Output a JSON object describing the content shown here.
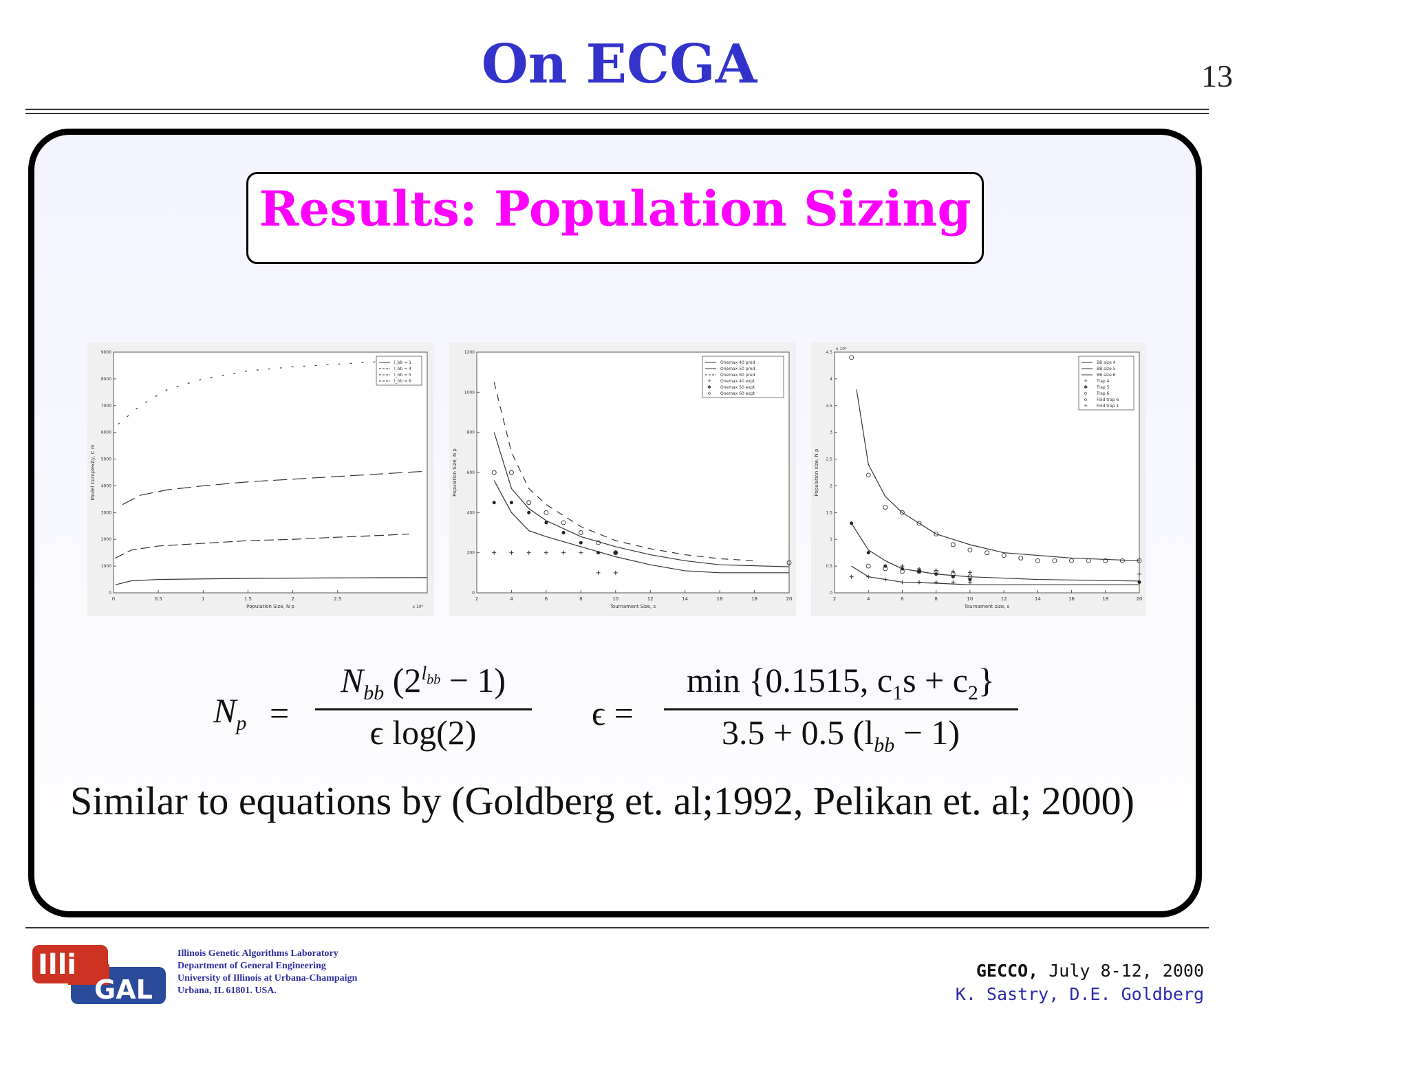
{
  "header": {
    "title": "On ECGA",
    "page_number": "13"
  },
  "results_title": "Results: Population Sizing",
  "equations": {
    "lhs1": "N",
    "lhs1_sub": "p",
    "num1": "N",
    "num1_sub": "bb",
    "num1_rest_open": "(2",
    "num1_exp": "l",
    "num1_exp_sub": "bb",
    "num1_rest_close": " − 1)",
    "den1": "ϵ log(2)",
    "lhs2": "ϵ =",
    "num2_a": "min {0.1515, c",
    "num2_sub1": "1",
    "num2_b": "s + c",
    "num2_sub2": "2",
    "num2_c": "}",
    "den2_a": "3.5 + 0.5 (l",
    "den2_sub": "bb",
    "den2_b": " − 1)"
  },
  "body_text": "Similar to equations by (Goldberg et. al;1992, Pelikan et. al; 2000)",
  "footer": {
    "logo_text_1": "Illi",
    "logo_text_2": "GAL",
    "lab_lines": [
      "Illinois Genetic Algorithms Laboratory",
      "Department of General Engineering",
      "University of Illinois at Urbana-Champaign",
      "Urbana, IL 61801. USA."
    ],
    "gecco_bold": "GECCO,",
    "gecco_date": " July 8-12, 2000",
    "authors": "K. Sastry, D.E. Goldberg"
  },
  "colors": {
    "title": "#3333cc",
    "results_title": "#ff00ff",
    "authors": "#2a2aa8"
  },
  "chart_data": [
    {
      "type": "line",
      "xlabel": "Population Size, N",
      "xlabel_sub": "p",
      "ylabel": "Model Complexity, C",
      "ylabel_sub": "m",
      "x_multiplier": "x 10⁴",
      "xlim": [
        0,
        3.5
      ],
      "ylim": [
        0,
        9000
      ],
      "xticks": [
        "0",
        "0.5",
        "1",
        "1.5",
        "2",
        "2.5"
      ],
      "yticks": [
        "0",
        "1000",
        "2000",
        "3000",
        "4000",
        "5000",
        "6000",
        "7000",
        "8000",
        "9000"
      ],
      "legend": [
        "l_bb = 1",
        "l_bb = 4",
        "l_bb = 5",
        "l_bb = 6"
      ],
      "legend_placement": "top-right",
      "series": [
        {
          "name": "l_bb = 1",
          "dash": "",
          "x": [
            0.02,
            0.2,
            0.5,
            1,
            1.5,
            2,
            2.5,
            3,
            3.5
          ],
          "y": [
            300,
            450,
            500,
            520,
            540,
            550,
            560,
            565,
            570
          ]
        },
        {
          "name": "l_bb = 4",
          "dash": "14,6",
          "x": [
            0.02,
            0.2,
            0.5,
            1,
            1.5,
            2,
            2.5,
            3,
            3.3
          ],
          "y": [
            1300,
            1600,
            1750,
            1850,
            1950,
            2000,
            2080,
            2150,
            2200
          ]
        },
        {
          "name": "l_bb = 5",
          "dash": "20,8",
          "x": [
            0.1,
            0.3,
            0.6,
            1,
            1.5,
            2,
            2.5,
            3,
            3.5
          ],
          "y": [
            3300,
            3650,
            3850,
            4000,
            4150,
            4250,
            4350,
            4450,
            4550
          ]
        },
        {
          "name": "l_bb = 6",
          "dash": "3,14",
          "x": [
            0.05,
            0.3,
            0.6,
            1,
            1.5,
            2,
            2.5,
            3,
            3.5
          ],
          "y": [
            6300,
            7000,
            7600,
            8000,
            8300,
            8450,
            8550,
            8650,
            8700
          ]
        }
      ]
    },
    {
      "type": "line",
      "xlabel": "Tournament Size, s",
      "ylabel": "Population Size, N",
      "ylabel_sub": "p",
      "xlim": [
        2,
        20
      ],
      "ylim": [
        0,
        1200
      ],
      "xticks": [
        "2",
        "4",
        "6",
        "8",
        "10",
        "12",
        "14",
        "16",
        "18",
        "20"
      ],
      "yticks": [
        "0",
        "200",
        "400",
        "600",
        "800",
        "1000",
        "1200"
      ],
      "legend": [
        "Onemax 40 pred",
        "Onemax 50 pred",
        "Onemax 60 pred",
        "Onemax 40 expt",
        "Onemax 50 expt",
        "Onemax 60 expt"
      ],
      "legend_placement": "top-right",
      "series": [
        {
          "name": "Onemax 40 pred",
          "dash": "",
          "x": [
            3,
            4,
            5,
            6,
            8,
            10,
            12,
            14,
            16,
            20
          ],
          "y": [
            560,
            400,
            310,
            280,
            230,
            180,
            140,
            110,
            100,
            100
          ]
        },
        {
          "name": "Onemax 50 pred",
          "dash": "",
          "x": [
            3,
            4,
            5,
            6,
            8,
            10,
            12,
            14,
            16,
            20
          ],
          "y": [
            800,
            520,
            420,
            360,
            280,
            230,
            190,
            160,
            140,
            130
          ]
        },
        {
          "name": "Onemax 60 pred",
          "dash": "10,8",
          "x": [
            3,
            4,
            5,
            6,
            8,
            10,
            12,
            14,
            16,
            18
          ],
          "y": [
            1050,
            700,
            520,
            440,
            330,
            260,
            220,
            190,
            170,
            160
          ]
        },
        {
          "name": "Onemax 40 expt",
          "marker": "+",
          "x": [
            3,
            4,
            5,
            6,
            7,
            8,
            9,
            10
          ],
          "y": [
            200,
            200,
            200,
            200,
            200,
            200,
            100,
            100
          ]
        },
        {
          "name": "Onemax 50 expt",
          "marker": "*",
          "x": [
            3,
            4,
            5,
            6,
            7,
            8,
            9,
            10
          ],
          "y": [
            450,
            450,
            400,
            350,
            300,
            250,
            200,
            200
          ]
        },
        {
          "name": "Onemax 60 expt",
          "marker": "o",
          "x": [
            3,
            4,
            5,
            6,
            7,
            8,
            9,
            10,
            20
          ],
          "y": [
            600,
            600,
            450,
            400,
            350,
            300,
            250,
            200,
            150
          ]
        }
      ]
    },
    {
      "type": "line",
      "xlabel": "Tournament size, s",
      "ylabel": "Population size, N",
      "ylabel_sub": "p",
      "y_multiplier": "x 10⁴",
      "xlim": [
        2,
        20
      ],
      "ylim": [
        0,
        4.5
      ],
      "xticks": [
        "2",
        "4",
        "6",
        "8",
        "10",
        "12",
        "14",
        "16",
        "18",
        "20"
      ],
      "yticks": [
        "0",
        "0.5",
        "1",
        "1.5",
        "2",
        "2.5",
        "3",
        "3.5",
        "4",
        "4.5"
      ],
      "legend": [
        "BB size 4",
        "BB size 5",
        "BB size 6",
        "Trap 4",
        "Trap 5",
        "Trap 6",
        "Fold trap 6",
        "Fold trap 1"
      ],
      "legend_placement": "top-right",
      "series": [
        {
          "name": "BB size 4",
          "dash": "",
          "x": [
            3,
            4,
            6,
            8,
            10,
            14,
            20
          ],
          "y": [
            0.5,
            0.3,
            0.2,
            0.18,
            0.15,
            0.15,
            0.15
          ]
        },
        {
          "name": "BB size 5",
          "dash": "",
          "x": [
            3,
            4,
            5,
            6,
            8,
            10,
            14,
            20
          ],
          "y": [
            1.3,
            0.8,
            0.6,
            0.45,
            0.35,
            0.3,
            0.25,
            0.22
          ]
        },
        {
          "name": "BB size 6",
          "dash": "",
          "x": [
            3.3,
            4,
            5,
            6,
            8,
            10,
            12,
            14,
            16,
            20
          ],
          "y": [
            3.8,
            2.4,
            1.8,
            1.5,
            1.1,
            0.9,
            0.75,
            0.7,
            0.65,
            0.6
          ]
        },
        {
          "name": "Trap 4",
          "marker": "+",
          "x": [
            3,
            4,
            5,
            6,
            7,
            8,
            9,
            10
          ],
          "y": [
            0.3,
            0.3,
            0.25,
            0.2,
            0.2,
            0.2,
            0.2,
            0.2
          ]
        },
        {
          "name": "Trap 5",
          "marker": "*",
          "x": [
            3,
            4,
            5,
            6,
            7,
            8,
            9,
            10,
            20
          ],
          "y": [
            1.3,
            0.75,
            0.5,
            0.45,
            0.4,
            0.35,
            0.3,
            0.25,
            0.2
          ]
        },
        {
          "name": "Trap 6",
          "marker": "o",
          "x": [
            3,
            4,
            5,
            6,
            7,
            8,
            9,
            10,
            11,
            12,
            13,
            14,
            15,
            16,
            17,
            18,
            19,
            20
          ],
          "y": [
            4.4,
            2.2,
            1.6,
            1.5,
            1.3,
            1.1,
            0.9,
            0.8,
            0.75,
            0.7,
            0.65,
            0.6,
            0.6,
            0.6,
            0.6,
            0.6,
            0.6,
            0.6
          ]
        },
        {
          "name": "Fold trap 6",
          "marker": "o",
          "x": [
            4,
            5,
            6,
            7,
            8,
            9,
            10
          ],
          "y": [
            0.5,
            0.45,
            0.4,
            0.4,
            0.38,
            0.35,
            0.3
          ]
        },
        {
          "name": "Fold trap 1",
          "marker": "+",
          "x": [
            6,
            7,
            8,
            9,
            10,
            20
          ],
          "y": [
            0.5,
            0.45,
            0.42,
            0.4,
            0.38,
            0.35
          ]
        }
      ]
    }
  ]
}
